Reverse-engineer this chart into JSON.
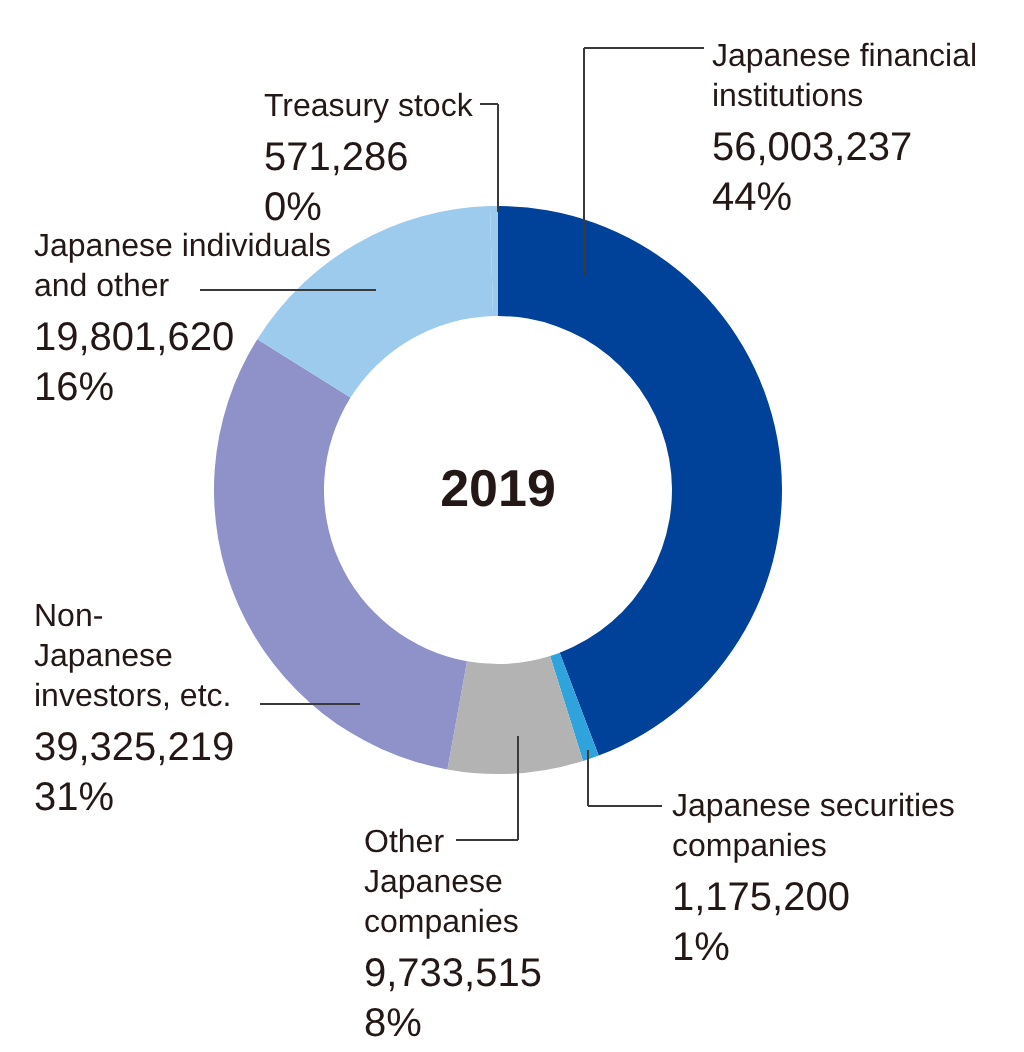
{
  "chart_data": {
    "type": "donut",
    "title": "2019",
    "categories": [
      "Japanese financial institutions",
      "Japanese securities companies",
      "Other Japanese companies",
      "Non-Japanese investors, etc.",
      "Japanese individuals and other",
      "Treasury stock"
    ],
    "values": [
      56003237,
      1175200,
      9733515,
      39325219,
      19801620,
      571286
    ],
    "colors": [
      "#00419a",
      "#2ea3dc",
      "#b3b3b3",
      "#8e92c8",
      "#9dcbee",
      "#9dcbee"
    ],
    "value_labels": [
      "56,003,237\n44%",
      "1,175,200\n1%",
      "9,733,515\n8%",
      "39,325,219\n31%",
      "19,801,620\n16%",
      "571,286\n0%"
    ]
  }
}
